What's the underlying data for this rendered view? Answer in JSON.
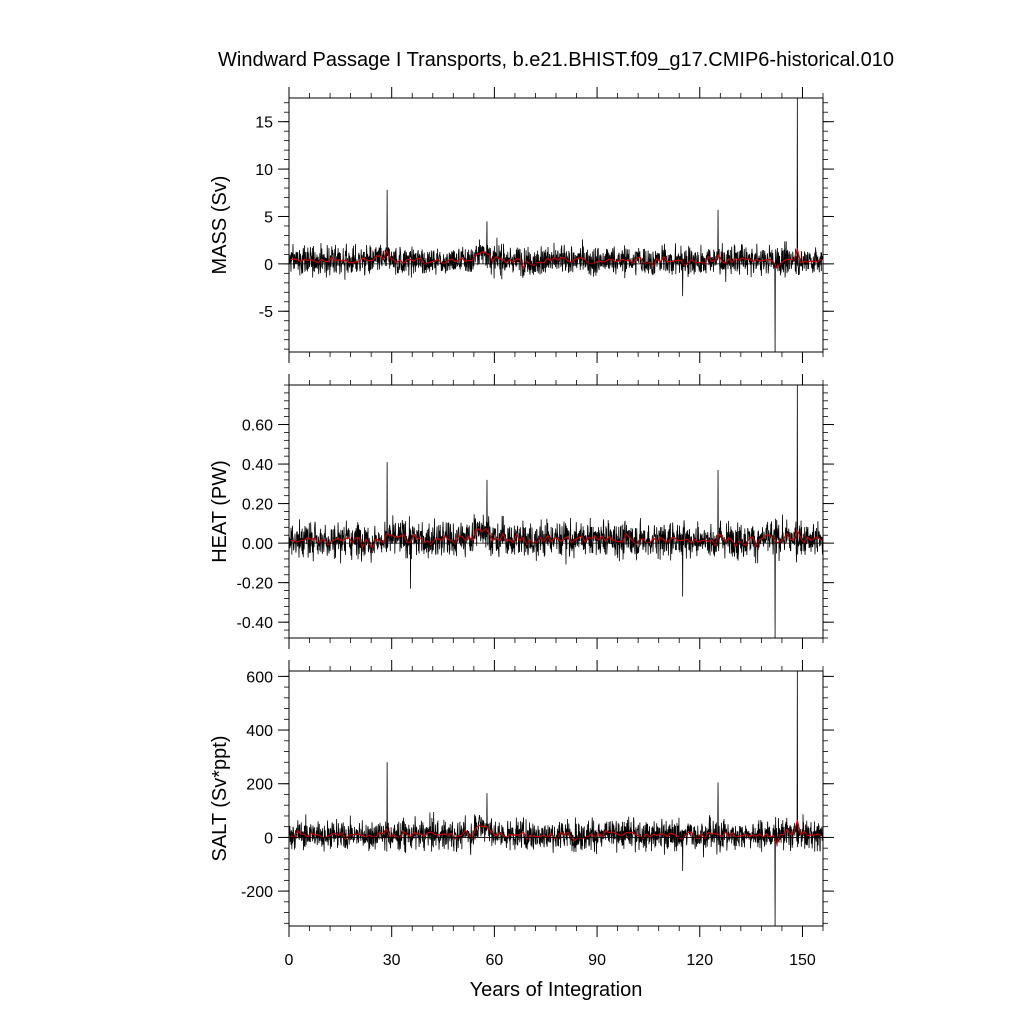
{
  "chart_data": {
    "title": "Windward Passage I Transports, b.e21.BHIST.f09_g17.CMIP6-historical.010",
    "type": "line",
    "xlabel": "Years of Integration",
    "xlim": [
      0,
      156
    ],
    "xticks": [
      0,
      30,
      60,
      90,
      120,
      150
    ],
    "xtick_labels": [
      "0",
      "30",
      "60",
      "90",
      "120",
      "150"
    ],
    "series_colors": {
      "monthly": "#000000",
      "annual": "#cc0000"
    },
    "panels": [
      {
        "ylabel": "MASS (Sv)",
        "ylim": [
          -9.3,
          17.5
        ],
        "yticks": [
          -5,
          0,
          5,
          10,
          15
        ],
        "ytick_labels": [
          "-5",
          "0",
          "5",
          "10",
          "15"
        ],
        "minor_step": 1,
        "baseline": 0.35,
        "noise_amplitude": 1.1,
        "spikes": [
          {
            "x": 28.7,
            "y": 7.8
          },
          {
            "x": 57.8,
            "y": 4.5
          },
          {
            "x": 115.0,
            "y": -3.4
          },
          {
            "x": 125.3,
            "y": 5.7
          },
          {
            "x": 142.0,
            "y": -9.3
          },
          {
            "x": 148.5,
            "y": 17.5
          }
        ]
      },
      {
        "ylabel": "HEAT (PW)",
        "ylim": [
          -0.48,
          0.8
        ],
        "yticks": [
          -0.4,
          -0.2,
          0,
          0.2,
          0.4,
          0.6
        ],
        "ytick_labels": [
          "-0.40",
          "-0.20",
          "0.00",
          "0.20",
          "0.40",
          "0.60"
        ],
        "minor_step": 0.04,
        "baseline": 0.02,
        "noise_amplitude": 0.065,
        "spikes": [
          {
            "x": 28.7,
            "y": 0.41
          },
          {
            "x": 35.5,
            "y": -0.23
          },
          {
            "x": 57.8,
            "y": 0.32
          },
          {
            "x": 115.0,
            "y": -0.27
          },
          {
            "x": 125.3,
            "y": 0.37
          },
          {
            "x": 142.0,
            "y": -0.48
          },
          {
            "x": 148.5,
            "y": 0.8
          }
        ]
      },
      {
        "ylabel": "SALT (Sv*ppt)",
        "ylim": [
          -330,
          620
        ],
        "yticks": [
          -200,
          0,
          200,
          400,
          600
        ],
        "ytick_labels": [
          "-200",
          "0",
          "200",
          "400",
          "600"
        ],
        "minor_step": 40,
        "baseline": 10,
        "noise_amplitude": 40,
        "spikes": [
          {
            "x": 28.7,
            "y": 280
          },
          {
            "x": 57.8,
            "y": 165
          },
          {
            "x": 115.0,
            "y": -125
          },
          {
            "x": 125.3,
            "y": 205
          },
          {
            "x": 142.0,
            "y": -330
          },
          {
            "x": 148.5,
            "y": 620
          }
        ]
      }
    ]
  }
}
